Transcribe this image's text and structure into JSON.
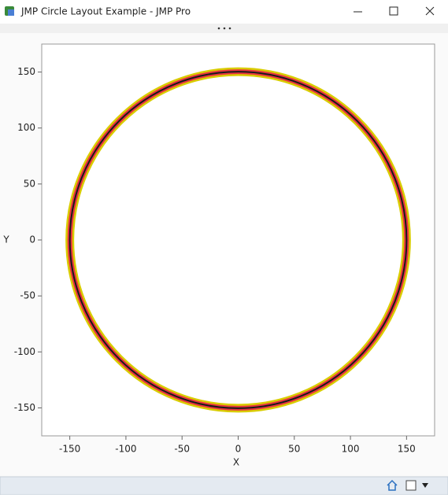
{
  "window": {
    "title": "JMP Circle Layout Example - JMP Pro"
  },
  "chart_data": {
    "type": "circle",
    "center": [
      0,
      0
    ],
    "radius": 150,
    "colors": [
      "#d9cc00",
      "#e8343f",
      "#1a1a1a"
    ],
    "x_label": "X",
    "y_label": "Y",
    "xlim": [
      -175,
      175
    ],
    "ylim": [
      -175,
      175
    ],
    "xticks": [
      -150,
      -100,
      -50,
      0,
      50,
      100,
      150
    ],
    "yticks": [
      -150,
      -100,
      -50,
      0,
      50,
      100,
      150
    ]
  }
}
